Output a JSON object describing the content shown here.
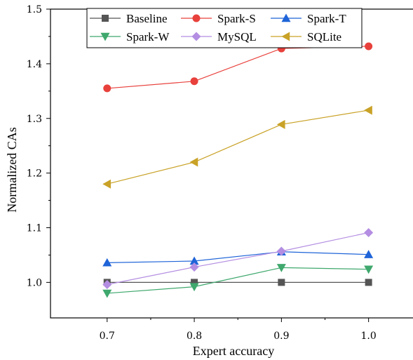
{
  "chart_data": {
    "type": "line",
    "xlabel": "Expert accuracy",
    "ylabel": "Normalized CAs",
    "x": [
      0.7,
      0.8,
      0.9,
      1.0
    ],
    "x_tick_labels": [
      "0.7",
      "0.8",
      "0.9",
      "1.0"
    ],
    "xlim": [
      0.635,
      1.055
    ],
    "y_ticks": [
      1.0,
      1.1,
      1.2,
      1.3,
      1.4,
      1.5
    ],
    "y_tick_labels": [
      "1.0",
      "1.1",
      "1.2",
      "1.3",
      "1.4",
      "1.5"
    ],
    "ylim": [
      0.935,
      1.5
    ],
    "grid": false,
    "legend_position": "top",
    "series": [
      {
        "name": "Baseline",
        "color": "#555555",
        "marker": "square",
        "values": [
          1.0,
          1.0,
          1.0,
          1.0
        ]
      },
      {
        "name": "Spark-S",
        "color": "#e8413c",
        "marker": "circle",
        "values": [
          1.355,
          1.368,
          1.428,
          1.432
        ]
      },
      {
        "name": "Spark-T",
        "color": "#1f64d8",
        "marker": "triangle-up",
        "values": [
          1.036,
          1.039,
          1.056,
          1.051
        ]
      },
      {
        "name": "Spark-W",
        "color": "#3fa86d",
        "marker": "triangle-down",
        "values": [
          0.98,
          0.992,
          1.027,
          1.024
        ]
      },
      {
        "name": "MySQL",
        "color": "#b48ee2",
        "marker": "diamond",
        "values": [
          0.996,
          1.028,
          1.057,
          1.091
        ]
      },
      {
        "name": "SQLite",
        "color": "#c9a227",
        "marker": "triangle-left",
        "values": [
          1.18,
          1.22,
          1.289,
          1.315
        ]
      }
    ]
  }
}
